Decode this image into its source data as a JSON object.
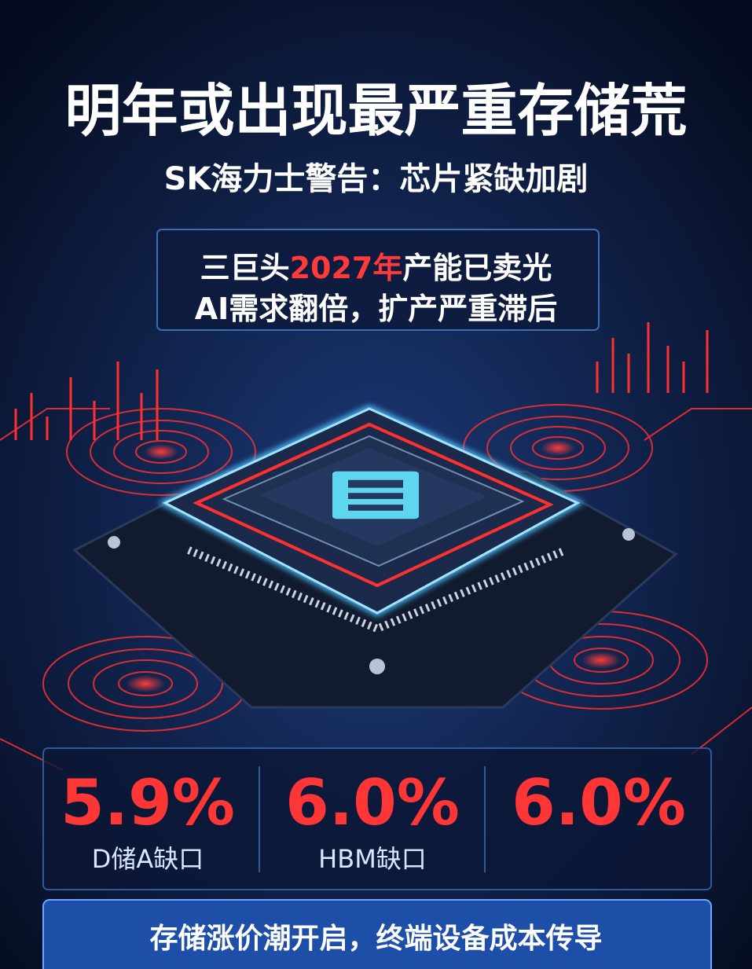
{
  "header": {
    "title": "明年或出现最严重存储荒",
    "subtitle": "SK海力士警告：芯片紧缺加剧"
  },
  "callout": {
    "line1": {
      "before": "三巨头",
      "highlight": "2027年",
      "after": "产能已卖光"
    },
    "line2": "AI需求翻倍，扩产严重滞后"
  },
  "stats": [
    {
      "value": "5.9%",
      "label": "D储A缺口"
    },
    {
      "value": "6.0%",
      "label": "HBM缺口"
    },
    {
      "value": "6.0%"
    }
  ],
  "footer": "存储涨价潮开启，终端设备成本传导"
}
